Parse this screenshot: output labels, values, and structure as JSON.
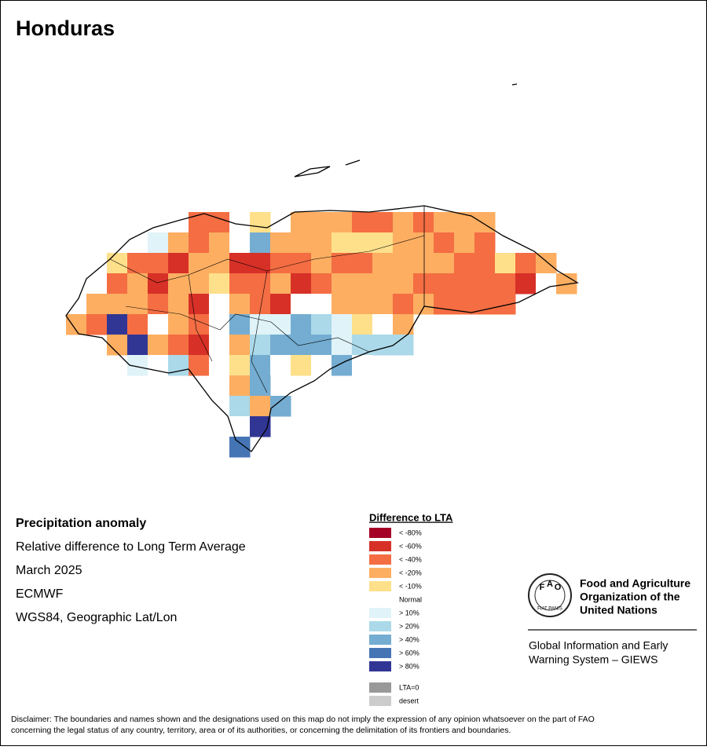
{
  "header": {
    "title": "Honduras"
  },
  "info": {
    "lines": [
      "Precipitation anomaly",
      "Relative difference to Long Term Average",
      "March 2025",
      "ECMWF",
      "WGS84, Geographic Lat/Lon"
    ]
  },
  "legend": {
    "title": "Difference to LTA",
    "items": [
      {
        "label": "< -80%",
        "color": "#a50026"
      },
      {
        "label": "< -60%",
        "color": "#d73027"
      },
      {
        "label": "< -40%",
        "color": "#f46d43"
      },
      {
        "label": "< -20%",
        "color": "#fdae61"
      },
      {
        "label": "< -10%",
        "color": "#fee08b"
      },
      {
        "label": "Normal",
        "color": "#ffffff"
      },
      {
        "label": "> 10%",
        "color": "#e0f3f8"
      },
      {
        "label": "> 20%",
        "color": "#abd9e9"
      },
      {
        "label": "> 40%",
        "color": "#74add1"
      },
      {
        "label": "> 60%",
        "color": "#4575b4"
      },
      {
        "label": "> 80%",
        "color": "#313695"
      }
    ],
    "extra": [
      {
        "label": "LTA=0",
        "color": "#999999"
      },
      {
        "label": "desert",
        "color": "#cccccc"
      }
    ]
  },
  "logo": {
    "letters": [
      "F",
      "A",
      "O"
    ],
    "motto": "FIAT PANIS",
    "name": [
      "Food and Agriculture",
      "Organization of the",
      "United Nations"
    ],
    "system": [
      "Global Information and Early",
      "Warning System – GIEWS"
    ]
  },
  "disclaimer": [
    "Disclaimer: The boundaries and names shown and the designations used on this map do not imply the expression of any opinion whatsoever on the part of FAO",
    "concerning the legal status of any country, territory, area or of its authorities, or concerning the delimitation of its frontiers and boundaries."
  ]
}
